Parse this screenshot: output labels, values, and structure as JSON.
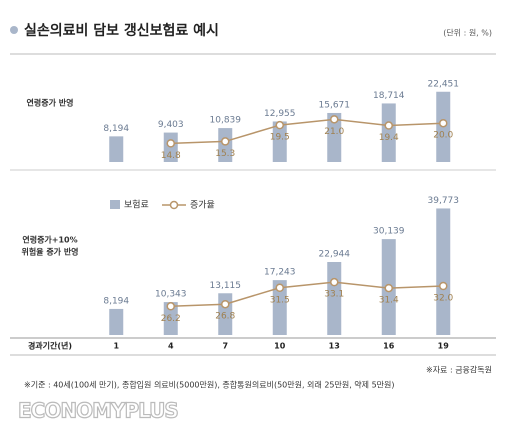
{
  "chart_data": {
    "type": "bar-line",
    "title": "실손의료비 담보 갱신보험료 예시",
    "unit_note": "(단위 : 원, %)",
    "x_label": "경과기간(년)",
    "categories": [
      "1",
      "4",
      "7",
      "10",
      "13",
      "16",
      "19"
    ],
    "legend": [
      "보험료",
      "증가율"
    ],
    "bar_color": "#a9b6ca",
    "line_color": "#b8956a",
    "panels": [
      {
        "label": [
          "연령증가 반영"
        ],
        "ylim": [
          0,
          31000
        ],
        "y2lim": [
          10,
          35
        ],
        "bars": {
          "values": [
            8194,
            9403,
            10839,
            12955,
            15671,
            18714,
            22451
          ],
          "value_labels": [
            "8,194",
            "9,403",
            "10,839",
            "12,955",
            "15,671",
            "18,714",
            "22,451"
          ]
        },
        "line": {
          "axis": "y2",
          "values": [
            null,
            14.8,
            15.3,
            19.5,
            21.0,
            19.4,
            20.0
          ],
          "value_labels": [
            null,
            "14.8",
            "15.3",
            "19.5",
            "21.0",
            "19.4",
            "20.0"
          ]
        }
      },
      {
        "label": [
          "연령증가+10%",
          "위험율 증가 반영"
        ],
        "ylim": [
          0,
          44000
        ],
        "y2lim": [
          18,
          58
        ],
        "bars": {
          "values": [
            8194,
            10343,
            13115,
            17243,
            22944,
            30139,
            39773
          ],
          "value_labels": [
            "8,194",
            "10,343",
            "13,115",
            "17,243",
            "22,944",
            "30,139",
            "39,773"
          ]
        },
        "line": {
          "axis": "y2",
          "values": [
            null,
            26.2,
            26.8,
            31.5,
            33.1,
            31.4,
            32.0
          ],
          "value_labels": [
            null,
            "26.2",
            "26.8",
            "31.5",
            "33.1",
            "31.4",
            "32.0"
          ]
        }
      }
    ],
    "source": "※자료 : 금융감독원",
    "note": "※기준 : 40세(100세 만기), 종합입원 의료비(5000만원), 종합통원의료비(50만원, 외래 25만원, 약제 5만원)",
    "logo": "ECONOMYPLUS"
  }
}
